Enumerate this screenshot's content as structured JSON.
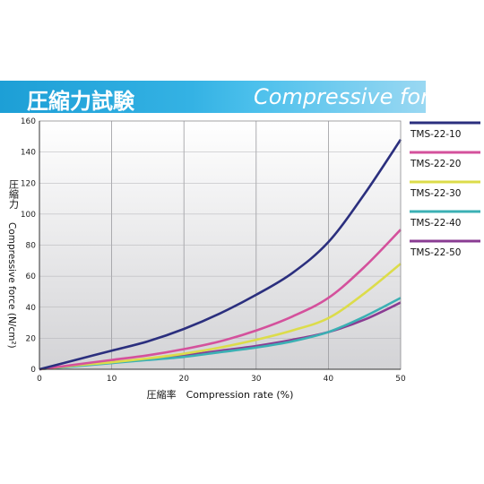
{
  "banner": {
    "title_jp": "圧縮力試験",
    "title_en": "Compressive force"
  },
  "chart_data": {
    "type": "line",
    "xlabel": "圧縮率　Compression rate (%)",
    "ylabel_jp": "圧縮力",
    "ylabel_en": "Compressive force (N/cm²)",
    "xlim": [
      0,
      50
    ],
    "ylim": [
      0,
      160
    ],
    "xticks": [
      "0",
      "10",
      "20",
      "30",
      "40",
      "50"
    ],
    "yticks": [
      "0",
      "20",
      "40",
      "60",
      "80",
      "100",
      "120",
      "140",
      "160"
    ],
    "grid": true,
    "legend_position": "right",
    "x": [
      0,
      5,
      10,
      15,
      20,
      25,
      30,
      35,
      40,
      45,
      50
    ],
    "series": [
      {
        "name": "TMS-22-10",
        "color": "#2b2f7e",
        "values": [
          0,
          6,
          12,
          18,
          26,
          36,
          48,
          62,
          82,
          113,
          148
        ]
      },
      {
        "name": "TMS-22-20",
        "color": "#d4519c",
        "values": [
          0,
          3,
          6,
          9,
          13,
          18,
          25,
          34,
          46,
          66,
          90
        ]
      },
      {
        "name": "TMS-22-30",
        "color": "#dcdc4a",
        "values": [
          0,
          2.5,
          4.5,
          7,
          10,
          14,
          19,
          25,
          33,
          49,
          68
        ]
      },
      {
        "name": "TMS-22-40",
        "color": "#3bb0b4",
        "values": [
          0,
          2,
          4,
          6,
          8,
          11,
          14,
          18,
          24,
          34,
          46
        ]
      },
      {
        "name": "TMS-22-50",
        "color": "#8a3c93",
        "values": [
          0,
          2.5,
          4.5,
          6.5,
          9,
          12,
          15,
          19,
          24,
          32,
          43
        ]
      }
    ]
  }
}
